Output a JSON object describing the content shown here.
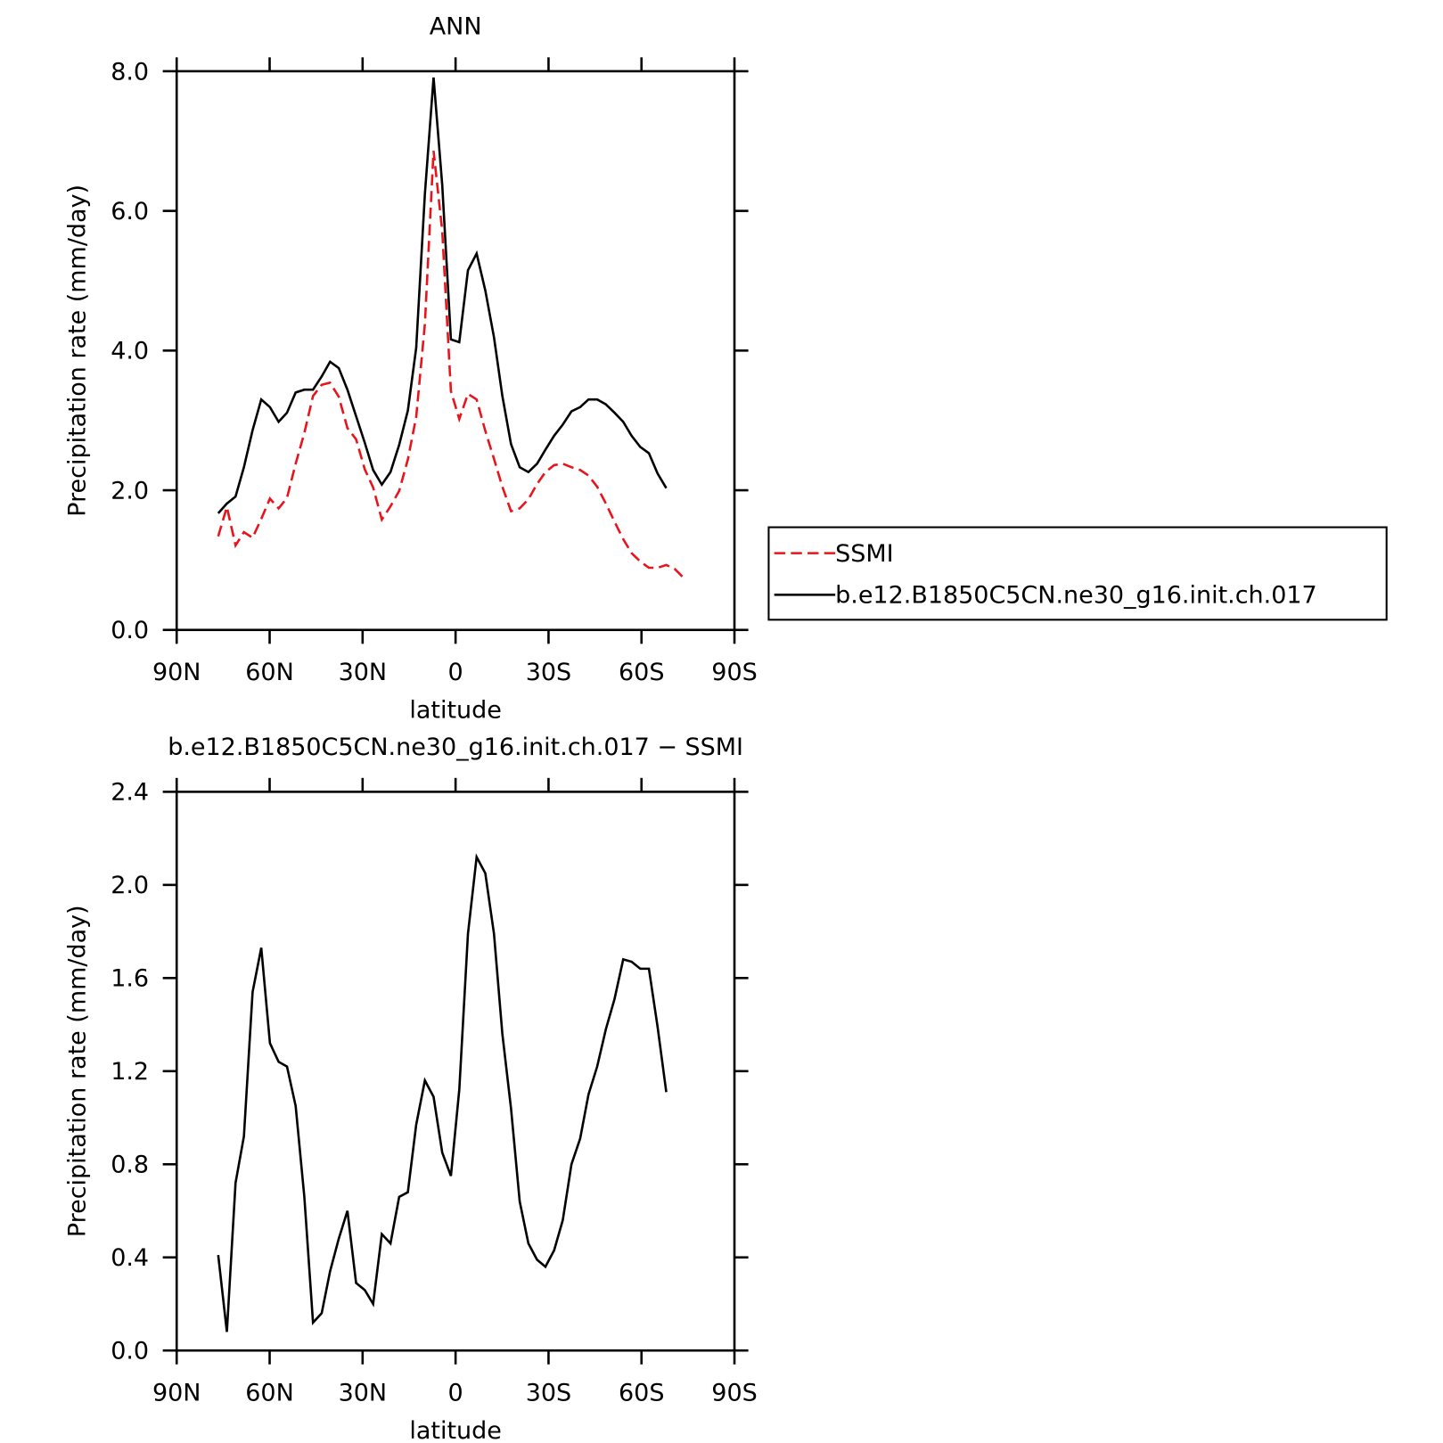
{
  "chart_data": [
    {
      "type": "line",
      "title": "ANN",
      "xlabel": "latitude",
      "ylabel": "Precipitation rate (mm/day)",
      "xlim": [
        90,
        -90
      ],
      "xticks": [
        {
          "value": 90,
          "label": "90N"
        },
        {
          "value": 60,
          "label": "60N"
        },
        {
          "value": 30,
          "label": "30N"
        },
        0,
        {
          "value": -30,
          "label": "30S"
        },
        {
          "value": -60,
          "label": "60S"
        },
        {
          "value": -90,
          "label": "90S"
        }
      ],
      "ylim": [
        0,
        8
      ],
      "yticks": [
        {
          "value": 0,
          "label": "0.0"
        },
        {
          "value": 2,
          "label": "2.0"
        },
        {
          "value": 4,
          "label": "4.0"
        },
        {
          "value": 6,
          "label": "6.0"
        },
        {
          "value": 8,
          "label": "8.0"
        }
      ],
      "legend": "right",
      "series": [
        {
          "name": "SSMI",
          "color": "#e8141c",
          "dash": "dashed",
          "x": [
            76.6,
            73.8,
            71.0,
            68.3,
            65.5,
            62.7,
            59.9,
            57.1,
            54.4,
            51.6,
            48.8,
            46.0,
            43.2,
            40.5,
            37.7,
            34.9,
            32.1,
            29.3,
            26.6,
            23.8,
            21.0,
            18.2,
            15.4,
            12.7,
            9.9,
            7.1,
            4.3,
            1.5,
            -1.2,
            -4.0,
            -6.8,
            -9.6,
            -12.4,
            -15.1,
            -17.9,
            -20.7,
            -23.5,
            -26.3,
            -29.0,
            -31.8,
            -34.6,
            -37.4,
            -40.2,
            -42.9,
            -45.7,
            -48.5,
            -51.3,
            -54.1,
            -56.8,
            -59.6,
            -62.4,
            -65.2,
            -68.0,
            -70.8,
            -73.5
          ],
          "values": [
            1.34,
            1.76,
            1.21,
            1.4,
            1.32,
            1.59,
            1.88,
            1.74,
            1.89,
            2.38,
            2.82,
            3.35,
            3.51,
            3.54,
            3.34,
            2.89,
            2.73,
            2.3,
            2.04,
            1.58,
            1.77,
            1.99,
            2.44,
            3.05,
            4.38,
            6.86,
            5.71,
            3.42,
            3.02,
            3.38,
            3.3,
            2.85,
            2.45,
            2.05,
            1.7,
            1.74,
            1.87,
            2.09,
            2.26,
            2.36,
            2.38,
            2.33,
            2.29,
            2.21,
            2.05,
            1.81,
            1.55,
            1.3,
            1.1,
            0.98,
            0.89,
            0.89,
            0.93,
            0.87,
            0.75
          ]
        },
        {
          "name": "b.e12.B1850C5CN.ne30_g16.init.ch.017",
          "color": "#000000",
          "dash": "solid",
          "x": [
            76.6,
            73.8,
            71.0,
            68.3,
            65.5,
            62.7,
            59.9,
            57.1,
            54.4,
            51.6,
            48.8,
            46.0,
            43.2,
            40.5,
            37.7,
            34.9,
            32.1,
            29.3,
            26.6,
            23.8,
            21.0,
            18.2,
            15.4,
            12.7,
            9.9,
            7.1,
            4.3,
            1.5,
            -1.2,
            -4.0,
            -6.8,
            -9.6,
            -12.4,
            -15.1,
            -17.9,
            -20.7,
            -23.5,
            -26.3,
            -29.0,
            -31.8,
            -34.6,
            -37.4,
            -40.2,
            -42.9,
            -45.7,
            -48.5,
            -51.3,
            -54.1,
            -56.8,
            -59.6,
            -62.4,
            -65.2,
            -68.0
          ],
          "values": [
            1.67,
            1.81,
            1.91,
            2.33,
            2.86,
            3.3,
            3.19,
            2.98,
            3.11,
            3.4,
            3.44,
            3.44,
            3.63,
            3.84,
            3.75,
            3.44,
            3.06,
            2.68,
            2.29,
            2.08,
            2.26,
            2.65,
            3.14,
            4.04,
            6.24,
            7.91,
            6.37,
            4.16,
            4.12,
            5.15,
            5.39,
            4.86,
            4.19,
            3.35,
            2.66,
            2.33,
            2.26,
            2.38,
            2.58,
            2.78,
            2.94,
            3.13,
            3.19,
            3.3,
            3.3,
            3.23,
            3.11,
            2.98,
            2.78,
            2.62,
            2.53,
            2.24,
            2.03
          ]
        }
      ]
    },
    {
      "type": "line",
      "title": "b.e12.B1850C5CN.ne30_g16.init.ch.017 − SSMI",
      "xlabel": "latitude",
      "ylabel": "Precipitation rate (mm/day)",
      "xlim": [
        90,
        -90
      ],
      "xticks": [
        {
          "value": 90,
          "label": "90N"
        },
        {
          "value": 60,
          "label": "60N"
        },
        {
          "value": 30,
          "label": "30N"
        },
        0,
        {
          "value": -30,
          "label": "30S"
        },
        {
          "value": -60,
          "label": "60S"
        },
        {
          "value": -90,
          "label": "90S"
        }
      ],
      "ylim": [
        0,
        2.4
      ],
      "yticks": [
        {
          "value": 0,
          "label": "0.0"
        },
        0.4,
        0.8,
        1.2,
        1.6,
        {
          "value": 2,
          "label": "2.0"
        },
        2.4
      ],
      "series": [
        {
          "color": "#000000",
          "dash": "solid",
          "x": [
            76.6,
            73.8,
            71.0,
            68.3,
            65.5,
            62.7,
            59.9,
            57.1,
            54.4,
            51.6,
            48.8,
            46.0,
            43.2,
            40.5,
            37.7,
            34.9,
            32.1,
            29.3,
            26.6,
            23.8,
            21.0,
            18.2,
            15.4,
            12.7,
            9.9,
            7.1,
            4.3,
            1.5,
            -1.2,
            -4.0,
            -6.8,
            -9.6,
            -12.4,
            -15.1,
            -17.9,
            -20.7,
            -23.5,
            -26.3,
            -29.0,
            -31.8,
            -34.6,
            -37.4,
            -40.2,
            -42.9,
            -45.7,
            -48.5,
            -51.3,
            -54.1,
            -56.8,
            -59.6,
            -62.4,
            -65.2,
            -68.0
          ],
          "values": [
            0.41,
            0.08,
            0.72,
            0.92,
            1.54,
            1.73,
            1.32,
            1.24,
            1.22,
            1.05,
            0.66,
            0.12,
            0.16,
            0.34,
            0.48,
            0.6,
            0.29,
            0.26,
            0.2,
            0.5,
            0.46,
            0.66,
            0.68,
            0.97,
            1.16,
            1.09,
            0.85,
            0.75,
            1.12,
            1.79,
            2.12,
            2.05,
            1.79,
            1.36,
            1.04,
            0.64,
            0.46,
            0.39,
            0.36,
            0.43,
            0.56,
            0.8,
            0.91,
            1.1,
            1.22,
            1.38,
            1.51,
            1.68,
            1.67,
            1.64,
            1.64,
            1.39,
            1.11
          ]
        }
      ]
    }
  ]
}
